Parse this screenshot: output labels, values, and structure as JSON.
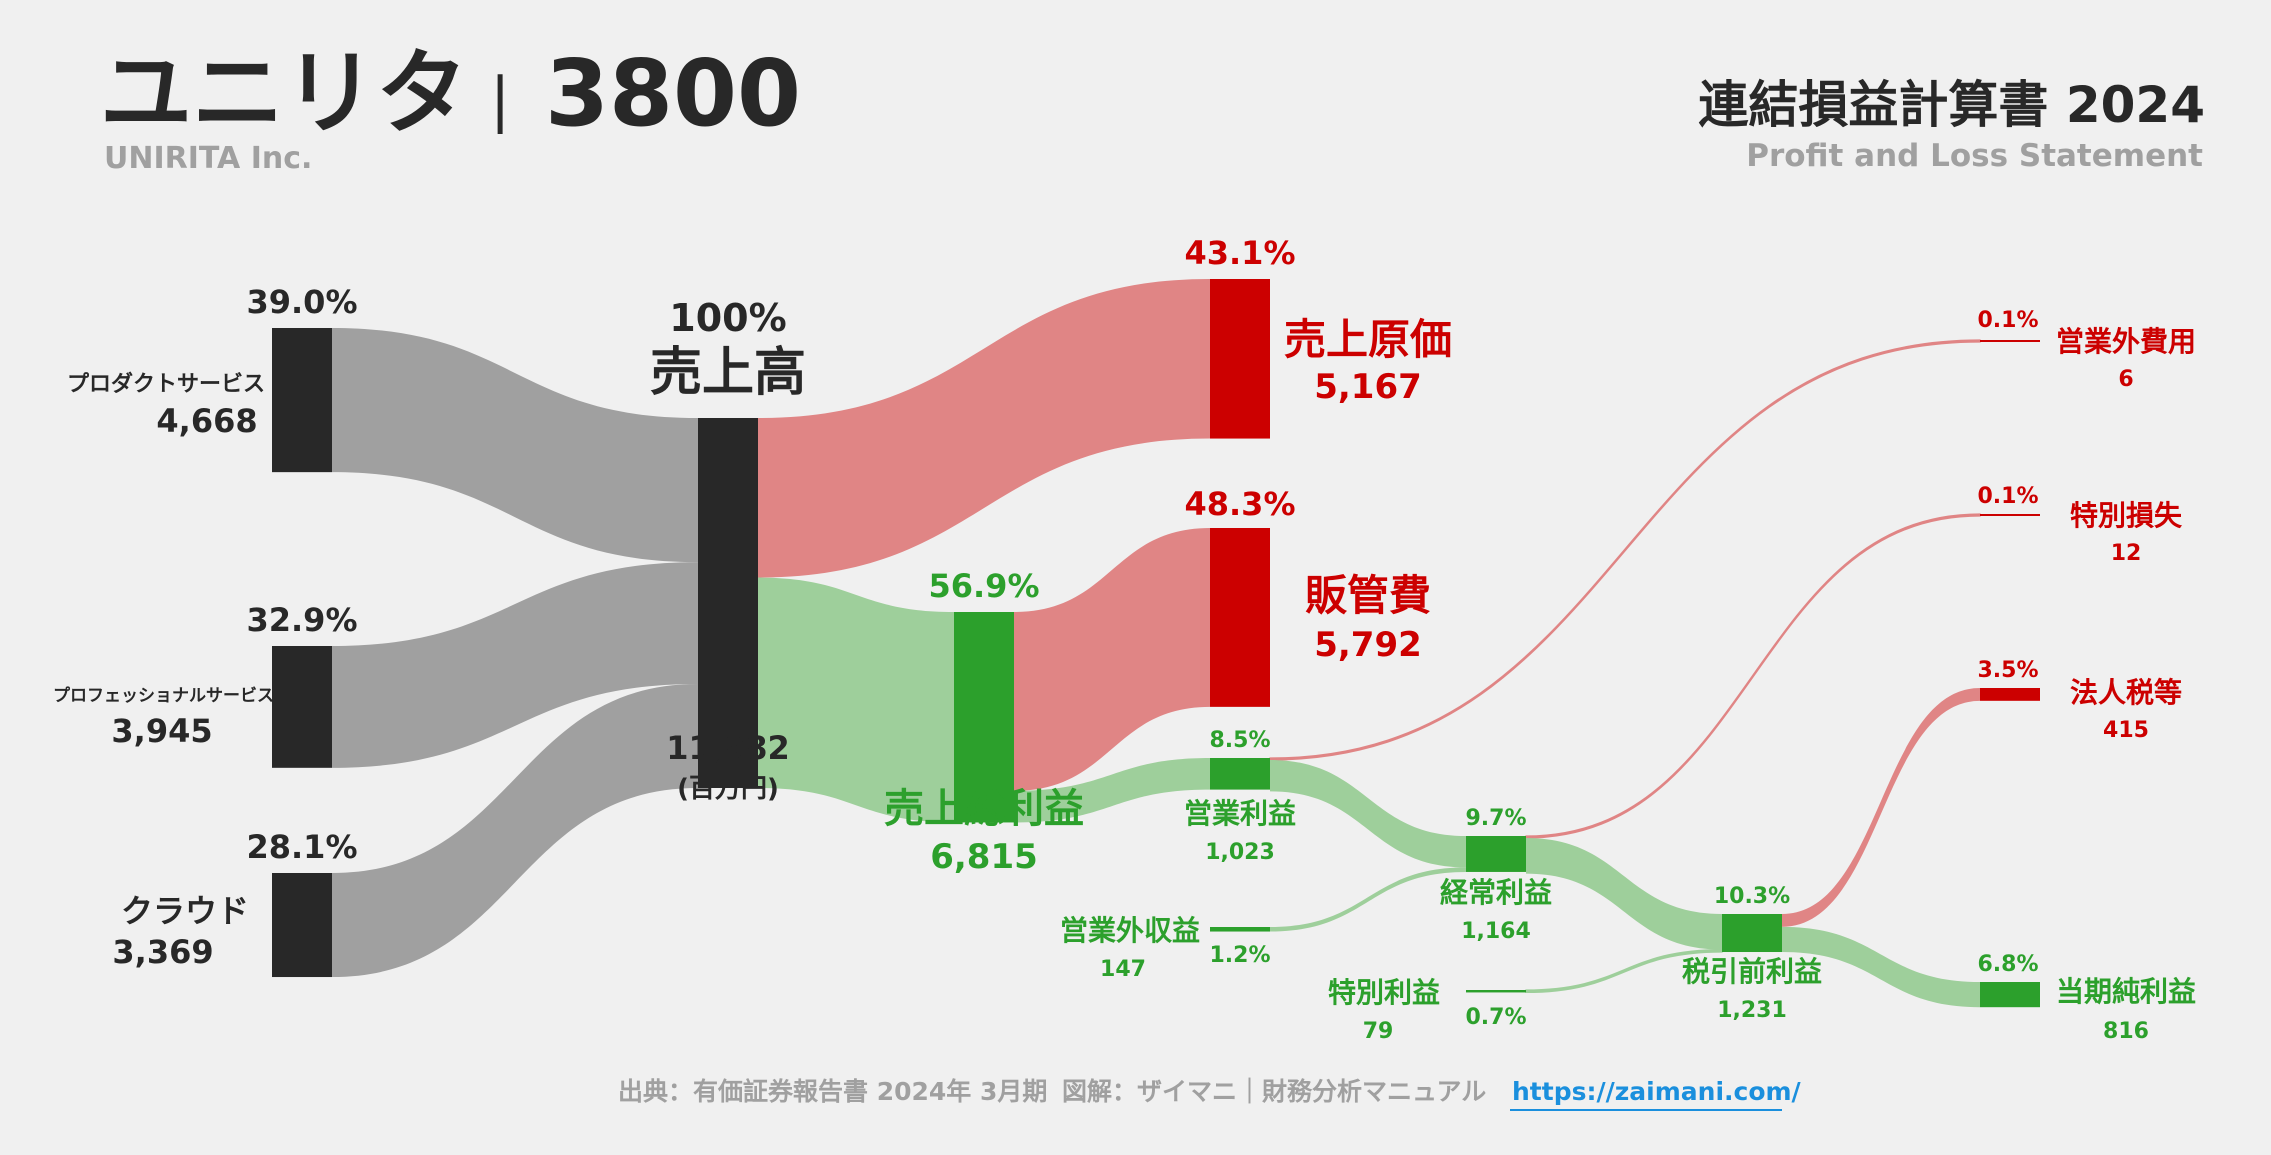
{
  "header": {
    "company": "ユニリタ",
    "separator": "|",
    "code": "3800",
    "company_en": "UNIRITA Inc.",
    "statement_title": "連結損益計算書 2024",
    "statement_en": "Profit and Loss Statement"
  },
  "footer": {
    "source": "出典：有価証券報告書 2024年 3月期",
    "credit": "図解：ザイマニ｜財務分析マニュアル",
    "url": "https://zaimani.com/"
  },
  "colors": {
    "dark": "#282828",
    "gray_flow": "#a0a0a0",
    "green": "#2ca02c",
    "green_flow": "#9ecf9b",
    "red": "#cc0000",
    "red_flow": "#e08585",
    "text_gray": "#a0a0a0",
    "link": "#1a8fdd"
  },
  "chart_data": {
    "type": "sankey",
    "unit": "(百万円)",
    "nodes": [
      {
        "id": "product",
        "label": "プロダクトサービス",
        "value": 4668,
        "value_text": "4,668",
        "pct": "39.0%"
      },
      {
        "id": "professional",
        "label": "プロフェッショナルサービス",
        "value": 3945,
        "value_text": "3,945",
        "pct": "32.9%"
      },
      {
        "id": "cloud",
        "label": "クラウド",
        "value": 3369,
        "value_text": "3,369",
        "pct": "28.1%"
      },
      {
        "id": "revenue",
        "label": "売上高",
        "value": 11982,
        "value_text": "11,982",
        "pct": "100%"
      },
      {
        "id": "cogs",
        "label": "売上原価",
        "value": 5167,
        "value_text": "5,167",
        "pct": "43.1%"
      },
      {
        "id": "gross",
        "label": "売上総利益",
        "value": 6815,
        "value_text": "6,815",
        "pct": "56.9%"
      },
      {
        "id": "sga",
        "label": "販管費",
        "value": 5792,
        "value_text": "5,792",
        "pct": "48.3%"
      },
      {
        "id": "operating",
        "label": "営業利益",
        "value": 1023,
        "value_text": "1,023",
        "pct": "8.5%"
      },
      {
        "id": "non_op_income",
        "label": "営業外収益",
        "value": 147,
        "value_text": "147",
        "pct": "1.2%"
      },
      {
        "id": "non_op_expense",
        "label": "営業外費用",
        "value": 6,
        "value_text": "6",
        "pct": "0.1%"
      },
      {
        "id": "ordinary",
        "label": "経常利益",
        "value": 1164,
        "value_text": "1,164",
        "pct": "9.7%"
      },
      {
        "id": "extra_gain",
        "label": "特別利益",
        "value": 79,
        "value_text": "79",
        "pct": "0.7%"
      },
      {
        "id": "extra_loss",
        "label": "特別損失",
        "value": 12,
        "value_text": "12",
        "pct": "0.1%"
      },
      {
        "id": "pretax",
        "label": "税引前利益",
        "value": 1231,
        "value_text": "1,231",
        "pct": "10.3%"
      },
      {
        "id": "tax",
        "label": "法人税等",
        "value": 415,
        "value_text": "415",
        "pct": "3.5%"
      },
      {
        "id": "net",
        "label": "当期純利益",
        "value": 816,
        "value_text": "816",
        "pct": "6.8%"
      }
    ],
    "links": [
      {
        "source": "product",
        "target": "revenue",
        "value": 4668
      },
      {
        "source": "professional",
        "target": "revenue",
        "value": 3945
      },
      {
        "source": "cloud",
        "target": "revenue",
        "value": 3369
      },
      {
        "source": "revenue",
        "target": "cogs",
        "value": 5167
      },
      {
        "source": "revenue",
        "target": "gross",
        "value": 6815
      },
      {
        "source": "gross",
        "target": "sga",
        "value": 5792
      },
      {
        "source": "gross",
        "target": "operating",
        "value": 1023
      },
      {
        "source": "operating",
        "target": "non_op_expense",
        "value": 6
      },
      {
        "source": "operating",
        "target": "ordinary",
        "value": 1017
      },
      {
        "source": "non_op_income",
        "target": "ordinary",
        "value": 147
      },
      {
        "source": "ordinary",
        "target": "extra_loss",
        "value": 12
      },
      {
        "source": "ordinary",
        "target": "pretax",
        "value": 1152
      },
      {
        "source": "extra_gain",
        "target": "pretax",
        "value": 79
      },
      {
        "source": "pretax",
        "target": "tax",
        "value": 415
      },
      {
        "source": "pretax",
        "target": "net",
        "value": 816
      }
    ]
  }
}
